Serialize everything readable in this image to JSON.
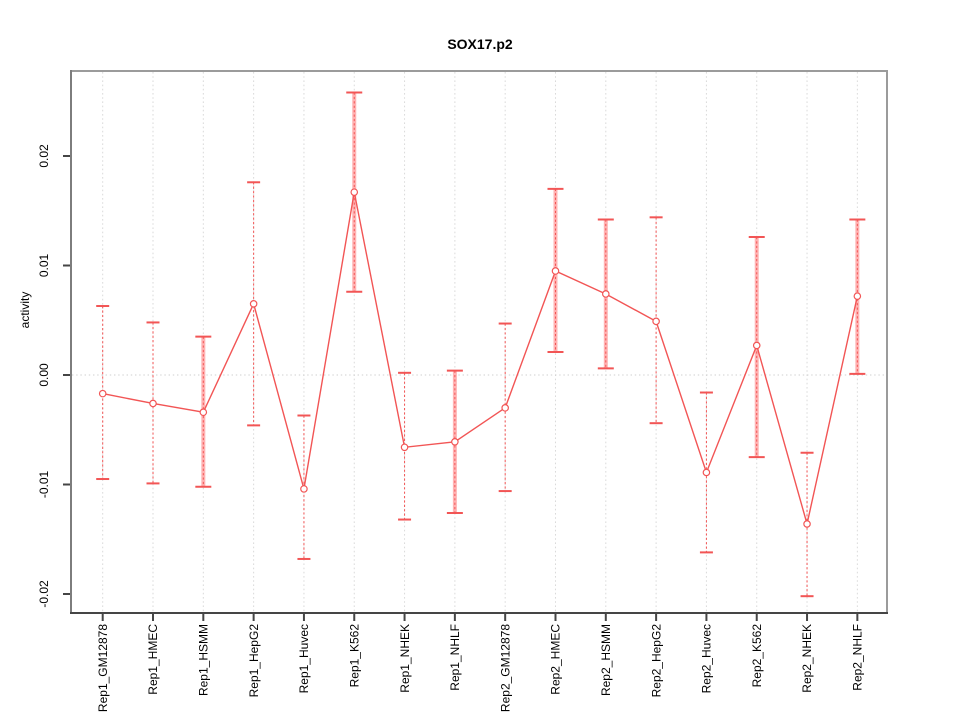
{
  "chart_data": {
    "type": "line",
    "subtype": "points-with-error-bars",
    "title": "SOX17.p2",
    "xlabel": "",
    "ylabel": "activity",
    "categories": [
      "Rep1_GM12878",
      "Rep1_HMEC",
      "Rep1_HSMM",
      "Rep1_HepG2",
      "Rep1_Huvec",
      "Rep1_K562",
      "Rep1_NHEK",
      "Rep1_NHLF",
      "Rep2_GM12878",
      "Rep2_HMEC",
      "Rep2_HSMM",
      "Rep2_HepG2",
      "Rep2_Huvec",
      "Rep2_K562",
      "Rep2_NHEK",
      "Rep2_NHLF"
    ],
    "series": [
      {
        "name": "activity",
        "values": [
          -0.0017,
          -0.0026,
          -0.0034,
          0.0065,
          -0.0104,
          0.0167,
          -0.0066,
          -0.0061,
          -0.003,
          0.0095,
          0.0074,
          0.0049,
          -0.0089,
          0.0027,
          -0.0136,
          0.0072
        ],
        "upper": [
          0.0063,
          0.0048,
          0.0035,
          0.0176,
          -0.0037,
          0.0258,
          0.0002,
          0.0004,
          0.0047,
          0.017,
          0.0142,
          0.0144,
          -0.0016,
          0.0126,
          -0.0071,
          0.0142
        ],
        "lower": [
          -0.0095,
          -0.0099,
          -0.0102,
          -0.0046,
          -0.0168,
          0.0076,
          -0.0132,
          -0.0126,
          -0.0106,
          0.0021,
          0.0006,
          -0.0044,
          -0.0162,
          -0.0075,
          -0.0202,
          0.0001
        ],
        "bar_styles": [
          "dashed",
          "dashed",
          "thick",
          "dashed",
          "dashed",
          "thick",
          "dashed",
          "thick",
          "dashed",
          "thick",
          "thick",
          "dashed",
          "dashed",
          "thick",
          "dashed",
          "thick"
        ]
      }
    ],
    "y_ticks": [
      "0.02",
      "0.01",
      "0.00",
      "-0.01",
      "-0.02"
    ],
    "y_tick_values": [
      0.02,
      0.01,
      0,
      -0.01,
      -0.02
    ],
    "ylim": [
      -0.0217,
      0.0278
    ],
    "grid": {
      "vertical": "dashed",
      "zero_line": "dotted"
    },
    "legend": "none",
    "colors": {
      "series": "#f25555",
      "thick_bar": "#ffb3b3",
      "gridline": "#dadada",
      "zero_line": "#cfcfcf",
      "box": "#9b9b9b",
      "axis": "#454545",
      "title": "#000000"
    }
  }
}
